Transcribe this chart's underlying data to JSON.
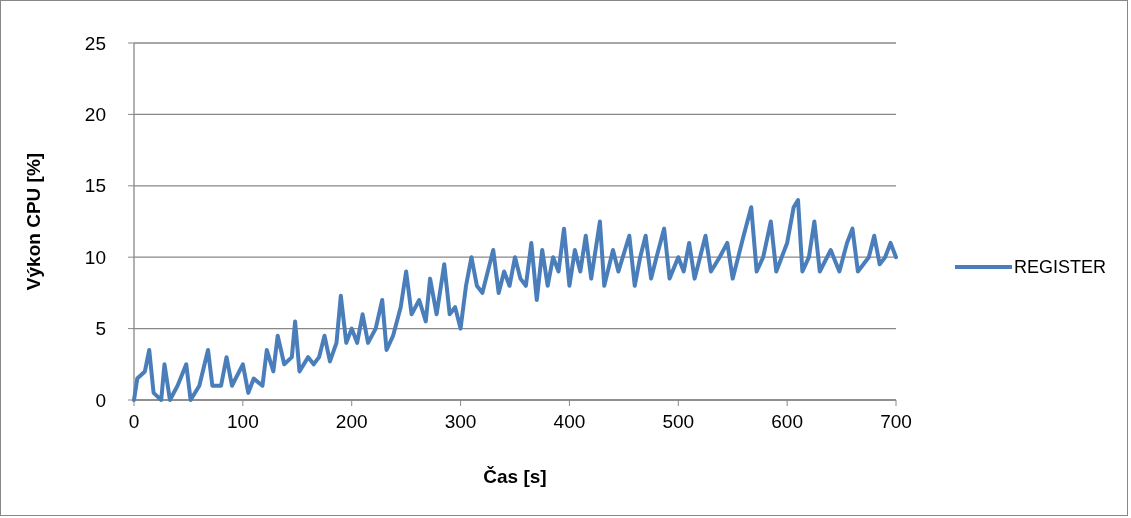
{
  "chart_data": {
    "type": "line",
    "xlabel": "Čas [s]",
    "ylabel": "Výkon CPU [%]",
    "xlim": [
      0,
      700
    ],
    "xticks": [
      0,
      100,
      200,
      300,
      400,
      500,
      600,
      700
    ],
    "ylim": [
      0,
      25
    ],
    "yticks": [
      0,
      5,
      10,
      15,
      20,
      25
    ],
    "grid": "y",
    "legend": "right",
    "line_style": "solid",
    "marker": "none",
    "x": [
      0,
      3,
      10,
      14,
      18,
      25,
      28,
      33,
      40,
      48,
      52,
      60,
      68,
      72,
      80,
      85,
      90,
      100,
      105,
      110,
      118,
      122,
      128,
      132,
      138,
      145,
      148,
      152,
      160,
      165,
      170,
      175,
      180,
      186,
      190,
      195,
      200,
      205,
      210,
      215,
      222,
      228,
      232,
      238,
      245,
      250,
      255,
      262,
      268,
      272,
      278,
      285,
      290,
      295,
      300,
      305,
      310,
      315,
      320,
      325,
      330,
      335,
      340,
      345,
      350,
      355,
      360,
      365,
      370,
      375,
      380,
      385,
      390,
      395,
      400,
      405,
      410,
      415,
      420,
      428,
      432,
      440,
      445,
      455,
      460,
      465,
      470,
      475,
      480,
      487,
      492,
      500,
      505,
      510,
      515,
      520,
      525,
      530,
      538,
      545,
      550,
      555,
      560,
      567,
      572,
      578,
      585,
      590,
      595,
      600,
      606,
      610,
      614,
      620,
      625,
      630,
      640,
      648,
      655,
      660,
      665,
      675,
      680,
      685,
      690,
      695,
      700
    ],
    "series": [
      {
        "name": "REGISTER",
        "color": "#4a7ebb",
        "values": [
          0,
          1.5,
          2,
          3.5,
          0.5,
          0,
          2.5,
          0,
          1,
          2.5,
          0,
          1,
          3.5,
          1,
          1,
          3,
          1,
          2.5,
          0.5,
          1.5,
          1,
          3.5,
          2,
          4.5,
          2.5,
          3,
          5.5,
          2,
          3,
          2.5,
          3,
          4.5,
          2.7,
          4,
          7.3,
          4,
          5,
          4,
          6,
          4,
          5,
          7,
          3.5,
          4.5,
          6.5,
          9,
          6,
          7,
          5.5,
          8.5,
          6,
          9.5,
          6,
          6.5,
          5,
          8,
          10,
          8,
          7.5,
          9,
          10.5,
          7.5,
          9,
          8,
          10,
          8.5,
          8,
          11,
          7,
          10.5,
          8,
          10,
          9,
          12,
          8,
          10.5,
          9,
          11.5,
          8.5,
          12.5,
          8,
          10.5,
          9,
          11.5,
          8,
          10,
          11.5,
          8.5,
          10,
          12,
          8.5,
          10,
          9,
          11,
          8.5,
          10,
          11.5,
          9,
          10,
          11,
          8.5,
          10,
          11.5,
          13.5,
          9,
          10,
          12.5,
          9,
          10,
          11,
          13.5,
          14,
          9,
          10,
          12.5,
          9,
          10.5,
          9,
          11,
          12,
          9,
          10,
          11.5,
          9.5,
          10,
          11,
          10
        ]
      }
    ]
  }
}
